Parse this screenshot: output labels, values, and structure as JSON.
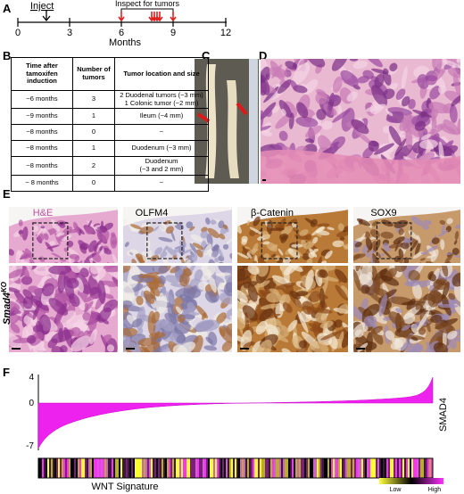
{
  "panel_labels": [
    "A",
    "B",
    "C",
    "D",
    "E",
    "F"
  ],
  "timeline": {
    "inject": "Inject",
    "inspect": "Inspect for tumors",
    "ticks": [
      "0",
      "3",
      "6",
      "9",
      "12"
    ],
    "axis_label": "Months"
  },
  "table": {
    "header": [
      "Time after tamoxifen induction",
      "Number of tumors",
      "Tumor location and size"
    ],
    "rows": [
      [
        "~6 months",
        "3",
        [
          "2 Duodenal tumors (~3 mm)",
          "1 Colonic tumor (~2 mm)"
        ]
      ],
      [
        "~9 months",
        "1",
        [
          "Ileum (~4 mm)"
        ]
      ],
      [
        "~8 months",
        "0",
        [
          "~"
        ]
      ],
      [
        "~8 months",
        "1",
        [
          "Duodenum (~3 mm)"
        ]
      ],
      [
        "~8 months",
        "2",
        [
          "Duodenum",
          "(~3 and 2 mm)"
        ]
      ],
      [
        "~ 8 months",
        "0",
        [
          "~"
        ]
      ]
    ]
  },
  "stains": [
    "H&E",
    "OLFM4",
    "β-Catenin",
    "SOX9"
  ],
  "genotype": {
    "base": "Smad4",
    "sup": "KO"
  },
  "panel_f": {
    "yticks": [
      "4",
      "0",
      "-7"
    ],
    "y_label": "SMAD4",
    "x_label": "WNT Signature",
    "legend": [
      "Low",
      "High"
    ]
  }
}
